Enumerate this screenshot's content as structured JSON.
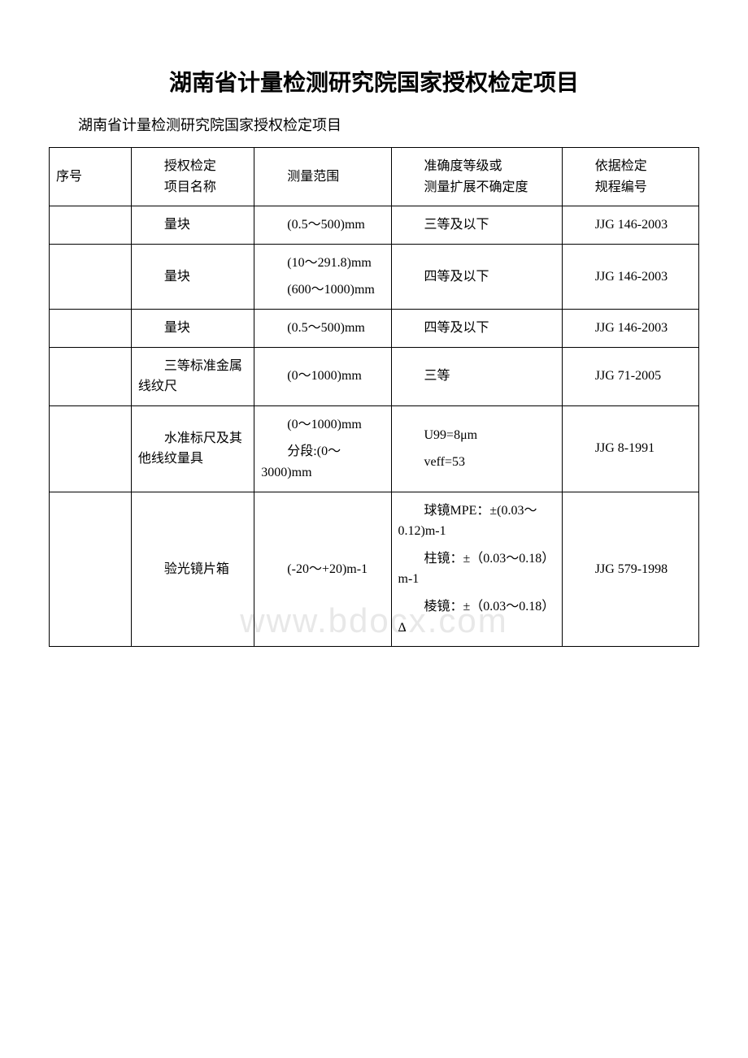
{
  "title": "湖南省计量检测研究院国家授权检定项目",
  "subtitle": "湖南省计量检测研究院国家授权检定项目",
  "watermark": "www.bdocx.com",
  "table": {
    "type": "table",
    "border_color": "#000000",
    "background_color": "#ffffff",
    "text_color": "#000000",
    "font_size": 16,
    "columns": [
      {
        "key": "seq",
        "label_lines": [
          "序号"
        ],
        "width": "12%"
      },
      {
        "key": "name",
        "label_lines": [
          "授权检定",
          "项目名称"
        ],
        "width": "18%"
      },
      {
        "key": "range",
        "label_lines": [
          "测量范围"
        ],
        "width": "20%"
      },
      {
        "key": "accuracy",
        "label_lines": [
          "准确度等级或",
          "测量扩展不确定度"
        ],
        "width": "25%"
      },
      {
        "key": "standard",
        "label_lines": [
          "依据检定",
          "规程编号"
        ],
        "width": "20%"
      }
    ],
    "rows": [
      {
        "seq": "",
        "name": "量块",
        "range": [
          "(0.5～500)mm"
        ],
        "accuracy": [
          "三等及以下"
        ],
        "standard": "JJG 146-2003"
      },
      {
        "seq": "",
        "name": "量块",
        "range": [
          "(10～291.8)mm",
          "(600～1000)mm"
        ],
        "accuracy": [
          "四等及以下"
        ],
        "standard": "JJG 146-2003"
      },
      {
        "seq": "",
        "name": "量块",
        "range": [
          "(0.5～500)mm"
        ],
        "accuracy": [
          "四等及以下"
        ],
        "standard": "JJG 146-2003"
      },
      {
        "seq": "",
        "name": "三等标准金属线纹尺",
        "range": [
          "(0～1000)mm"
        ],
        "accuracy": [
          "三等"
        ],
        "standard": "JJG 71-2005"
      },
      {
        "seq": "",
        "name": "水准标尺及其他线纹量具",
        "range": [
          "(0～1000)mm",
          "分段:(0～3000)mm"
        ],
        "accuracy": [
          "U99=8μm",
          "veff=53"
        ],
        "standard": "JJG 8-1991"
      },
      {
        "seq": "",
        "name": "验光镜片箱",
        "range": [
          "(-20～+20)m-1"
        ],
        "accuracy": [
          "球镜MPE：±(0.03～0.12)m-1",
          "柱镜：±（0.03～0.18）m-1",
          "棱镜：±（0.03～0.18）Δ"
        ],
        "standard": "JJG 579-1998"
      }
    ]
  }
}
